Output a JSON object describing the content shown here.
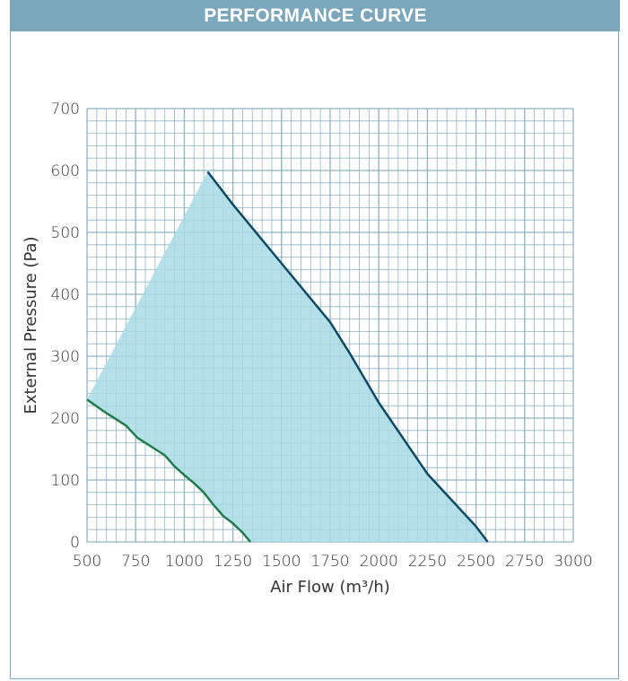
{
  "header": {
    "title": "PERFORMANCE CURVE"
  },
  "colors": {
    "header_bg": "#7aa7bb",
    "grid": "#8fb4c4",
    "fill": "#a8dbe6",
    "upper_curve": "#0f4a66",
    "lower_curve": "#1f7d4a"
  },
  "chart_data": {
    "type": "area",
    "title": "",
    "xlabel": "Air Flow (m³/h)",
    "ylabel": "External Pressure (Pa)",
    "xlim": [
      500,
      3000
    ],
    "ylim": [
      0,
      700
    ],
    "x_ticks": [
      500,
      750,
      1000,
      1250,
      1500,
      1750,
      2000,
      2250,
      2500,
      2750,
      3000
    ],
    "y_ticks": [
      0,
      100,
      200,
      300,
      400,
      500,
      600,
      700
    ],
    "grid": true,
    "series": [
      {
        "x": [
          500,
          1120,
          1250,
          1500,
          1750,
          1850,
          2000,
          2250,
          2500,
          2560
        ],
        "y": [
          230,
          598,
          545,
          450,
          355,
          305,
          225,
          110,
          25,
          0
        ]
      },
      {
        "x": [
          500,
          600,
          700,
          760,
          800,
          850,
          900,
          950,
          1000,
          1050,
          1100,
          1150,
          1200,
          1250,
          1300,
          1340
        ],
        "y": [
          230,
          208,
          188,
          168,
          160,
          150,
          140,
          122,
          108,
          95,
          80,
          60,
          42,
          30,
          15,
          0
        ]
      }
    ]
  }
}
